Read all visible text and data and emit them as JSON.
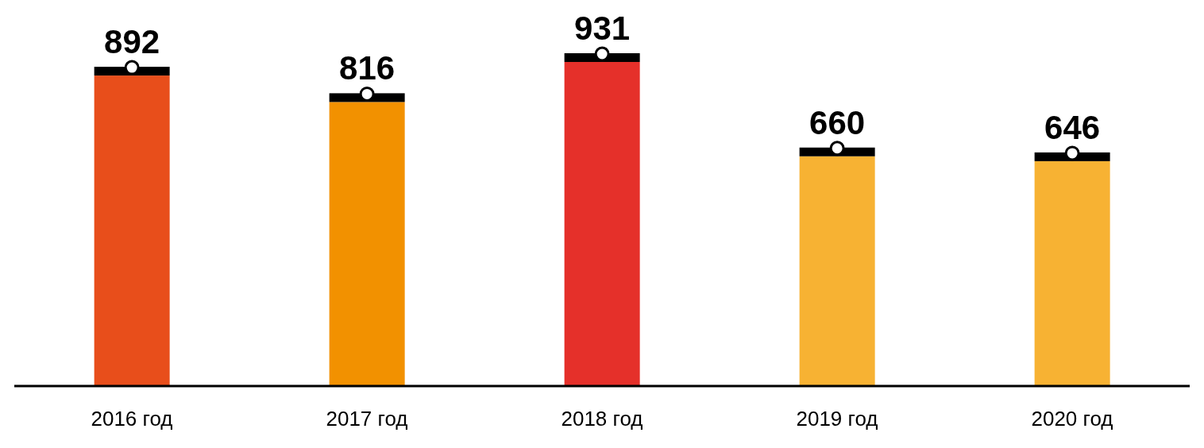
{
  "chart_data": {
    "type": "bar",
    "categories": [
      "2016 год",
      "2017 год",
      "2018 год",
      "2019 год",
      "2020 год"
    ],
    "values": [
      892,
      816,
      931,
      660,
      646
    ],
    "colors": [
      "#e84e1b",
      "#f29100",
      "#e5302a",
      "#f7b233",
      "#f7b233"
    ],
    "data_labels": true,
    "grid": false,
    "legend": false
  }
}
